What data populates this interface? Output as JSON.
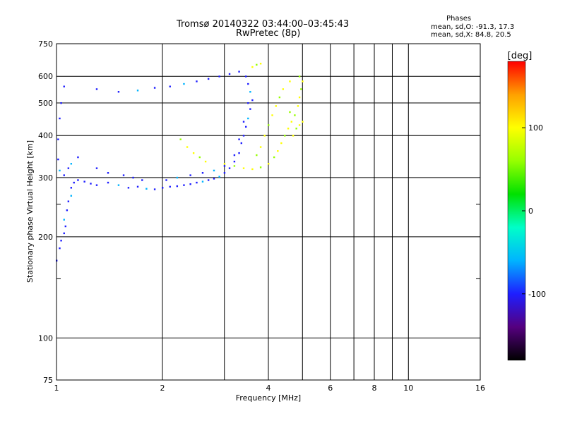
{
  "header": {
    "title_line1": "Tromsø 20140322 03:44:00–03:45:43",
    "title_line2": "RwPretec (8p)",
    "phases_title": "Phases",
    "stats_o": "mean, sd,O: -91.3, 17.3",
    "stats_x": "mean, sd,X:  84.8, 20.5"
  },
  "chart_data": {
    "type": "scatter",
    "title": "Tromsø 20140322 03:44:00–03:45:43",
    "subtitle": "RwPretec (8p)",
    "xlabel": "Frequency [MHz]",
    "ylabel": "Stationary phase Virtual Height [km]",
    "x_scale": "log",
    "y_scale": "log",
    "xlim": [
      1,
      16
    ],
    "ylim": [
      75,
      750
    ],
    "x_ticks": [
      1,
      2,
      4,
      6,
      8,
      10,
      16
    ],
    "x_minor_ticks": [
      3,
      5,
      7,
      9
    ],
    "y_ticks": [
      75,
      100,
      200,
      300,
      400,
      500,
      600,
      750
    ],
    "y_minor_ticks": [
      150,
      250
    ],
    "grid": true,
    "colorbar": {
      "label": "[deg]",
      "range": [
        -180,
        180
      ],
      "ticks": [
        -100,
        0,
        100
      ],
      "colors": [
        "#000000",
        "#55007f",
        "#1e1eff",
        "#00b4ff",
        "#00ffc8",
        "#00e100",
        "#96ff00",
        "#ffff00",
        "#ffa000",
        "#ff0000"
      ]
    },
    "series": [
      {
        "description": "O-mode trace",
        "phase_mean": -91.3,
        "phase_sd": 17.3,
        "points": [
          [
            1.0,
            170
          ],
          [
            1.02,
            185
          ],
          [
            1.03,
            195
          ],
          [
            1.05,
            205
          ],
          [
            1.06,
            215
          ],
          [
            1.05,
            225
          ],
          [
            1.07,
            240
          ],
          [
            1.08,
            255
          ],
          [
            1.1,
            265
          ],
          [
            1.1,
            280
          ],
          [
            1.12,
            290
          ],
          [
            1.15,
            295
          ],
          [
            1.2,
            292
          ],
          [
            1.25,
            288
          ],
          [
            1.3,
            285
          ],
          [
            1.4,
            290
          ],
          [
            1.5,
            285
          ],
          [
            1.6,
            280
          ],
          [
            1.7,
            282
          ],
          [
            1.8,
            278
          ],
          [
            1.9,
            277
          ],
          [
            2.0,
            280
          ],
          [
            2.1,
            282
          ],
          [
            2.2,
            283
          ],
          [
            2.3,
            285
          ],
          [
            2.4,
            287
          ],
          [
            2.5,
            290
          ],
          [
            2.6,
            292
          ],
          [
            2.7,
            295
          ],
          [
            2.8,
            298
          ],
          [
            2.9,
            302
          ],
          [
            3.0,
            310
          ],
          [
            3.1,
            320
          ],
          [
            3.2,
            335
          ],
          [
            3.3,
            355
          ],
          [
            3.35,
            380
          ],
          [
            3.4,
            400
          ],
          [
            3.45,
            425
          ],
          [
            3.5,
            450
          ],
          [
            3.55,
            480
          ],
          [
            3.6,
            510
          ],
          [
            3.55,
            540
          ],
          [
            3.5,
            570
          ],
          [
            3.45,
            600
          ],
          [
            3.3,
            620
          ],
          [
            3.1,
            610
          ],
          [
            2.9,
            600
          ],
          [
            2.7,
            590
          ],
          [
            2.5,
            580
          ],
          [
            2.3,
            570
          ],
          [
            2.1,
            560
          ],
          [
            1.9,
            555
          ],
          [
            1.7,
            545
          ],
          [
            1.5,
            540
          ],
          [
            1.3,
            550
          ],
          [
            1.05,
            560
          ],
          [
            1.03,
            500
          ],
          [
            1.02,
            450
          ],
          [
            1.01,
            390
          ],
          [
            1.01,
            340
          ],
          [
            1.02,
            315
          ],
          [
            1.05,
            305
          ],
          [
            1.08,
            320
          ],
          [
            1.1,
            330
          ],
          [
            1.15,
            345
          ],
          [
            1.3,
            320
          ],
          [
            1.4,
            310
          ],
          [
            1.55,
            305
          ],
          [
            1.65,
            300
          ],
          [
            1.75,
            295
          ],
          [
            2.05,
            295
          ],
          [
            2.2,
            300
          ],
          [
            2.4,
            305
          ],
          [
            2.6,
            310
          ],
          [
            2.8,
            315
          ],
          [
            3.0,
            325
          ],
          [
            3.2,
            350
          ],
          [
            3.3,
            390
          ],
          [
            3.4,
            440
          ],
          [
            3.5,
            500
          ]
        ]
      },
      {
        "description": "X-mode trace",
        "phase_mean": 84.8,
        "phase_sd": 20.5,
        "points": [
          [
            2.25,
            390
          ],
          [
            2.35,
            370
          ],
          [
            2.45,
            355
          ],
          [
            2.55,
            345
          ],
          [
            2.65,
            335
          ],
          [
            3.0,
            330
          ],
          [
            3.2,
            325
          ],
          [
            3.4,
            320
          ],
          [
            3.6,
            318
          ],
          [
            3.8,
            322
          ],
          [
            4.0,
            330
          ],
          [
            4.15,
            345
          ],
          [
            4.25,
            360
          ],
          [
            4.35,
            380
          ],
          [
            4.45,
            400
          ],
          [
            4.55,
            420
          ],
          [
            4.65,
            440
          ],
          [
            4.75,
            460
          ],
          [
            4.85,
            490
          ],
          [
            4.9,
            520
          ],
          [
            4.95,
            550
          ],
          [
            5.0,
            580
          ],
          [
            4.9,
            600
          ],
          [
            4.6,
            580
          ],
          [
            4.4,
            550
          ],
          [
            4.3,
            520
          ],
          [
            4.2,
            490
          ],
          [
            4.1,
            460
          ],
          [
            4.0,
            430
          ],
          [
            3.9,
            400
          ],
          [
            3.8,
            370
          ],
          [
            3.7,
            350
          ],
          [
            3.6,
            640
          ],
          [
            3.7,
            650
          ],
          [
            3.8,
            655
          ],
          [
            4.7,
            400
          ],
          [
            4.8,
            420
          ],
          [
            4.9,
            430
          ],
          [
            5.0,
            440
          ],
          [
            4.6,
            470
          ]
        ]
      }
    ]
  }
}
